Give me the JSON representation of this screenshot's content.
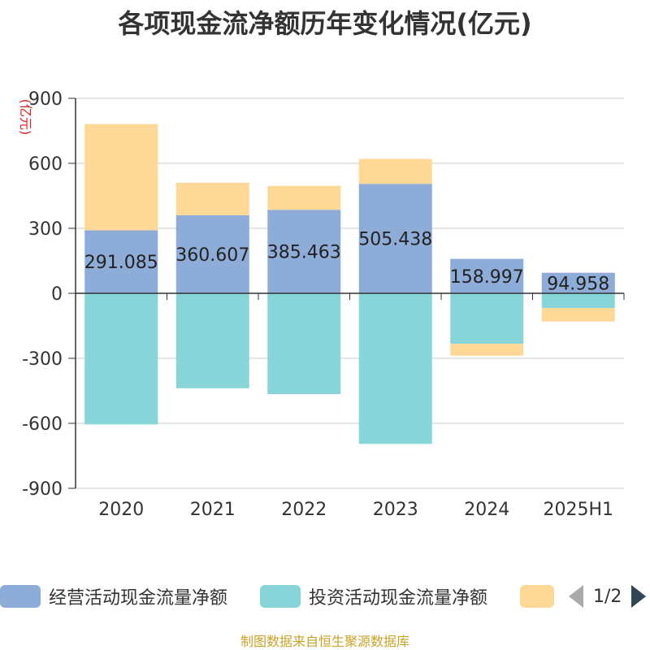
{
  "title": "各项现金流净额历年变化情况(亿元)",
  "footer": "制图数据来自恒生聚源数据库",
  "pager": {
    "text": "1/2"
  },
  "chart_data": {
    "type": "bar",
    "stacked": true,
    "unit_label": "(亿元)",
    "categories": [
      "2020",
      "2021",
      "2022",
      "2023",
      "2024",
      "2025H1"
    ],
    "ylim": [
      -900,
      900
    ],
    "yticks": [
      900,
      600,
      300,
      0,
      -300,
      -600,
      -900
    ],
    "grid": true,
    "legend_position": "bottom",
    "series": [
      {
        "name": "经营活动现金流量净额",
        "color": "#8eacd8",
        "values": [
          291.085,
          360.607,
          385.463,
          505.438,
          158.997,
          94.958
        ],
        "value_labels": [
          "291.085",
          "360.607",
          "385.463",
          "505.438",
          "158.997",
          "94.958"
        ]
      },
      {
        "name": "投资活动现金流量净额",
        "color": "#87d5d9",
        "values": [
          -605,
          -438,
          -465,
          -695,
          -233,
          -68
        ]
      },
      {
        "name": "",
        "color": "#fdd896",
        "values": [
          490,
          150,
          110,
          115,
          -55,
          -62
        ]
      }
    ]
  }
}
